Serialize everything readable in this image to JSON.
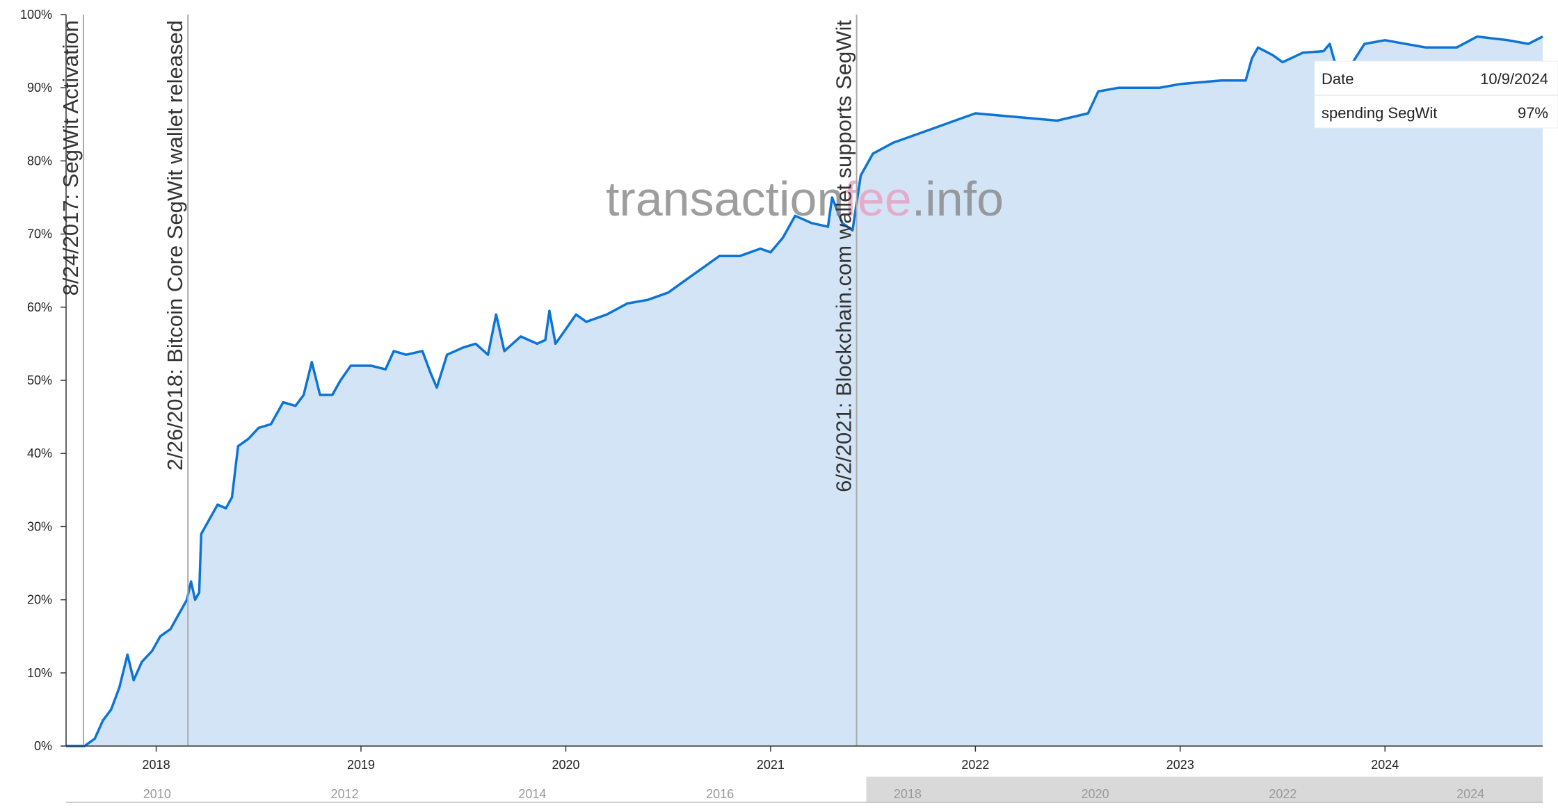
{
  "chart_data": {
    "type": "area",
    "watermark": [
      "transaction",
      "fee",
      ".info"
    ],
    "x": [
      2017.56,
      2017.65,
      2017.7,
      2017.74,
      2017.78,
      2017.82,
      2017.86,
      2017.89,
      2017.93,
      2017.98,
      2018.02,
      2018.07,
      2018.11,
      2018.15,
      2018.17,
      2018.19,
      2018.21,
      2018.22,
      2018.26,
      2018.3,
      2018.34,
      2018.37,
      2018.4,
      2018.45,
      2018.5,
      2018.56,
      2018.62,
      2018.68,
      2018.72,
      2018.76,
      2018.8,
      2018.86,
      2018.9,
      2018.95,
      2019.05,
      2019.12,
      2019.16,
      2019.22,
      2019.3,
      2019.34,
      2019.37,
      2019.42,
      2019.5,
      2019.56,
      2019.62,
      2019.66,
      2019.7,
      2019.78,
      2019.86,
      2019.9,
      2019.92,
      2019.95,
      2020.0,
      2020.05,
      2020.1,
      2020.2,
      2020.3,
      2020.4,
      2020.5,
      2020.6,
      2020.7,
      2020.75,
      2020.85,
      2020.95,
      2021.0,
      2021.06,
      2021.12,
      2021.2,
      2021.28,
      2021.3,
      2021.35,
      2021.4,
      2021.44,
      2021.5,
      2021.6,
      2021.7,
      2021.8,
      2021.9,
      2022.0,
      2022.2,
      2022.4,
      2022.55,
      2022.6,
      2022.7,
      2022.9,
      2023.0,
      2023.2,
      2023.32,
      2023.35,
      2023.38,
      2023.45,
      2023.5,
      2023.6,
      2023.7,
      2023.73,
      2023.76,
      2023.82,
      2023.9,
      2024.0,
      2024.2,
      2024.35,
      2024.45,
      2024.6,
      2024.7,
      2024.77
    ],
    "series": [
      {
        "name": "spending SegWit",
        "color": "#0b74d6",
        "fill": "#d4e4f7",
        "values": [
          0,
          0,
          1,
          3.5,
          5,
          8,
          12.5,
          9,
          11.5,
          13,
          15,
          16,
          18,
          20,
          22.5,
          20,
          21,
          29,
          31,
          33,
          32.5,
          34,
          41,
          42,
          43.5,
          44,
          47,
          46.5,
          48,
          52.5,
          48,
          48,
          50,
          52,
          52,
          51.5,
          54,
          53.5,
          54,
          51,
          49,
          53.5,
          54.5,
          55,
          53.5,
          59,
          54,
          56,
          55,
          55.5,
          59.5,
          55,
          57,
          59,
          58,
          59,
          60.5,
          61,
          62,
          64,
          66,
          67,
          67,
          68,
          67.5,
          69.5,
          72.5,
          71.5,
          71,
          75,
          71.5,
          70.5,
          78,
          81,
          82.5,
          83.5,
          84.5,
          85.5,
          86.5,
          86,
          85.5,
          86.5,
          89.5,
          90,
          90,
          90.5,
          91,
          91,
          94,
          95.5,
          94.5,
          93.5,
          94.8,
          95,
          96,
          93,
          92.5,
          96,
          96.5,
          95.5,
          95.5,
          97,
          96.5,
          96,
          97
        ]
      }
    ],
    "xlim": [
      2017.56,
      2024.77
    ],
    "xticks": [
      2018,
      2019,
      2020,
      2021,
      2022,
      2023,
      2024
    ],
    "ylim": [
      0,
      100
    ],
    "yticks": [
      {
        "value": 0,
        "label": "0%"
      },
      {
        "value": 10,
        "label": "10%"
      },
      {
        "value": 20,
        "label": "20%"
      },
      {
        "value": 30,
        "label": "30%"
      },
      {
        "value": 40,
        "label": "40%"
      },
      {
        "value": 50,
        "label": "50%"
      },
      {
        "value": 60,
        "label": "60%"
      },
      {
        "value": 70,
        "label": "70%"
      },
      {
        "value": 80,
        "label": "80%"
      },
      {
        "value": 90,
        "label": "90%"
      },
      {
        "value": 100,
        "label": "100%"
      }
    ],
    "annotations": [
      {
        "x": 2017.645,
        "text": "8/24/2017: SegWit Activation"
      },
      {
        "x": 2018.155,
        "text": "2/26/2018: Bitcoin Core SegWit wallet released"
      },
      {
        "x": 2021.42,
        "text": "6/2/2021: Blockchain.com wallet supports SegWit"
      }
    ],
    "navigator": {
      "xlim": [
        2009.03,
        2024.77
      ],
      "xticks": [
        2010,
        2012,
        2014,
        2016,
        2018,
        2020,
        2022,
        2024
      ]
    },
    "tooltip": {
      "date_label": "Date",
      "date": "10/9/2024",
      "value": "97%"
    }
  }
}
